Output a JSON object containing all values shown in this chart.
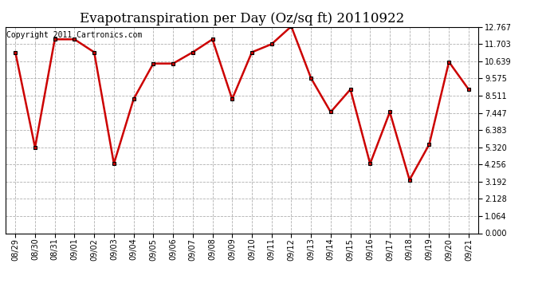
{
  "title": "Evapotranspiration per Day (Oz/sq ft) 20110922",
  "copyright": "Copyright 2011 Cartronics.com",
  "x_labels": [
    "08/29",
    "08/30",
    "08/31",
    "09/01",
    "09/02",
    "09/03",
    "09/04",
    "09/05",
    "09/06",
    "09/07",
    "09/08",
    "09/09",
    "09/10",
    "09/11",
    "09/12",
    "09/13",
    "09/14",
    "09/15",
    "09/16",
    "09/17",
    "09/18",
    "09/19",
    "09/20",
    "09/21"
  ],
  "y_values": [
    11.2,
    5.3,
    12.0,
    12.0,
    11.2,
    4.3,
    8.3,
    10.5,
    10.5,
    11.2,
    12.0,
    8.3,
    11.2,
    11.7,
    12.8,
    9.6,
    7.5,
    8.9,
    4.3,
    7.5,
    3.3,
    5.5,
    10.6,
    8.9
  ],
  "yticks": [
    0.0,
    1.064,
    2.128,
    3.192,
    4.256,
    5.32,
    6.383,
    7.447,
    8.511,
    9.575,
    10.639,
    11.703,
    12.767
  ],
  "ymin": 0.0,
  "ymax": 12.767,
  "line_color": "#cc0000",
  "marker_color": "#000000",
  "bg_color": "#ffffff",
  "plot_bg_color": "#ffffff",
  "grid_color": "#b0b0b0",
  "title_fontsize": 12,
  "copyright_fontsize": 7,
  "tick_fontsize": 7,
  "figwidth": 6.9,
  "figheight": 3.75,
  "dpi": 100
}
